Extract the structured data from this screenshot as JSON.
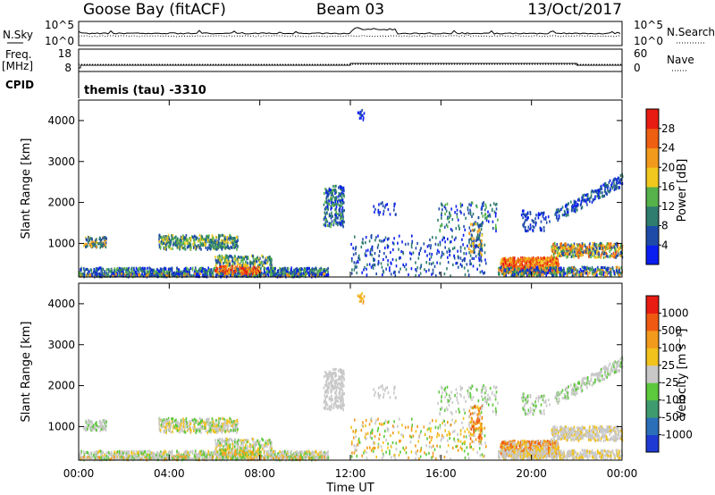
{
  "header": {
    "station": "Goose Bay (fitACF)",
    "beam": "Beam 03",
    "date": "13/Oct/2017"
  },
  "panels": {
    "nsky_label": "N.Sky",
    "nsky_ticks": [
      "10^5",
      "10^0"
    ],
    "nsearch_label": "N.Search",
    "nsearch_ticks": [
      "10^5",
      "10^0"
    ],
    "freq_label_1": "Freq.",
    "freq_label_2": "[MHz]",
    "freq_ticks": [
      "18",
      "8"
    ],
    "nave_label": "Nave",
    "nave_ticks": [
      "60",
      "0"
    ],
    "cpid_label": "CPID",
    "cpid_text": "themis (tau) -3310"
  },
  "chart_data": [
    {
      "type": "heatmap",
      "name": "power",
      "ylabel": "Slant Range [km]",
      "ylim": [
        180,
        4500
      ],
      "yticks": [
        "1000",
        "2000",
        "3000",
        "4000"
      ],
      "colorbar": {
        "label": "Power [dB]",
        "ticks": [
          "4",
          "8",
          "12",
          "16",
          "20",
          "24",
          "28"
        ],
        "colors": [
          "#0a1ef0",
          "#1e4ba8",
          "#2e7d6e",
          "#56b14a",
          "#f0c81e",
          "#f29a1c",
          "#ef5f12",
          "#e81c12"
        ]
      }
    },
    {
      "type": "heatmap",
      "name": "velocity",
      "ylabel": "Slant Range [km]",
      "ylim": [
        180,
        4500
      ],
      "yticks": [
        "1000",
        "2000",
        "3000",
        "4000"
      ],
      "xlabel": "Time UT",
      "xticks": [
        "00:00",
        "04:00",
        "08:00",
        "12:00",
        "16:00",
        "20:00",
        "00:00"
      ],
      "colorbar": {
        "label": "Velocity [m s⁻¹]",
        "ticks": [
          "1000",
          "500",
          "100",
          "25",
          "-25",
          "-100",
          "-500",
          "-1000"
        ],
        "colors": [
          "#1e3ad2",
          "#2a6fb8",
          "#3e9b6e",
          "#5cc83c",
          "#c8c8c8",
          "#f2c21c",
          "#f29a1c",
          "#ef5a12",
          "#e81c12"
        ]
      }
    }
  ]
}
